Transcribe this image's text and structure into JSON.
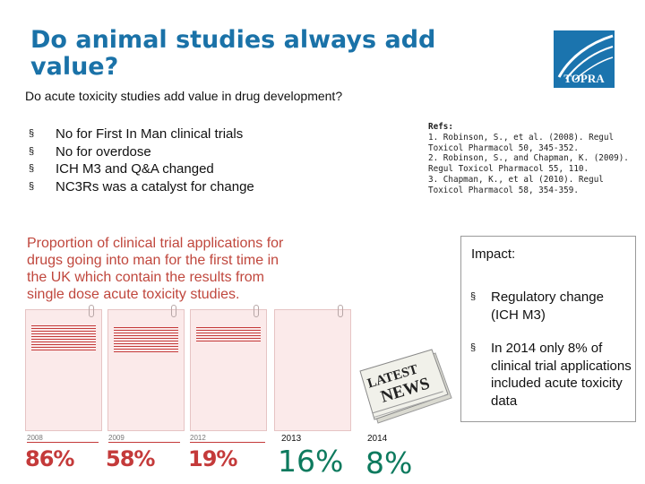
{
  "slide": {
    "title": "Do animal studies always add value?",
    "logo_text": "TOPRA",
    "subtitle": "Do acute toxicity studies add value in drug development?"
  },
  "bullets": [
    {
      "marker": "§",
      "text": "No for First In Man clinical trials"
    },
    {
      "marker": "§",
      "text": "No for overdose"
    },
    {
      "marker": "§",
      "text": "ICH M3 and Q&A changed"
    },
    {
      "marker": "§",
      "text": "NC3Rs was a catalyst for change"
    }
  ],
  "refs": {
    "heading": "Refs:",
    "line1": "1. Robinson, S., et al. (2008). Regul Toxicol Pharmacol 50, 345-352.",
    "line2": "2. Robinson, S., and Chapman, K. (2009). Regul Toxicol Pharmacol 55, 110.",
    "line3": "3. Chapman, K., et al (2010). Regul Toxicol Pharmacol 58, 354-359."
  },
  "chart": {
    "title": "Proportion of clinical trial applications for drugs going into man for the first time in the UK which contain the results from single dose acute toxicity studies.",
    "docs": [
      {
        "year": "2008",
        "value": "86%",
        "fraction": 0.86
      },
      {
        "year": "2009",
        "value": "58%",
        "fraction": 0.58
      },
      {
        "year": "2012",
        "value": "19%",
        "fraction": 0.19
      },
      {
        "year": "2013",
        "value": "16%",
        "fraction": 0.16
      }
    ],
    "latest": {
      "year": "2014",
      "value": "8%"
    },
    "news_label": "LATEST NEWS",
    "colors": {
      "accent": "#c43a3a",
      "green": "#0d7a5e",
      "doc_bg": "#fbeaea"
    }
  },
  "impact": {
    "title": "Impact:",
    "items": [
      {
        "marker": "§",
        "text": "Regulatory change (ICH M3)"
      },
      {
        "marker": "§",
        "text": "In 2014 only 8% of clinical trial applications included acute toxicity data"
      }
    ]
  }
}
